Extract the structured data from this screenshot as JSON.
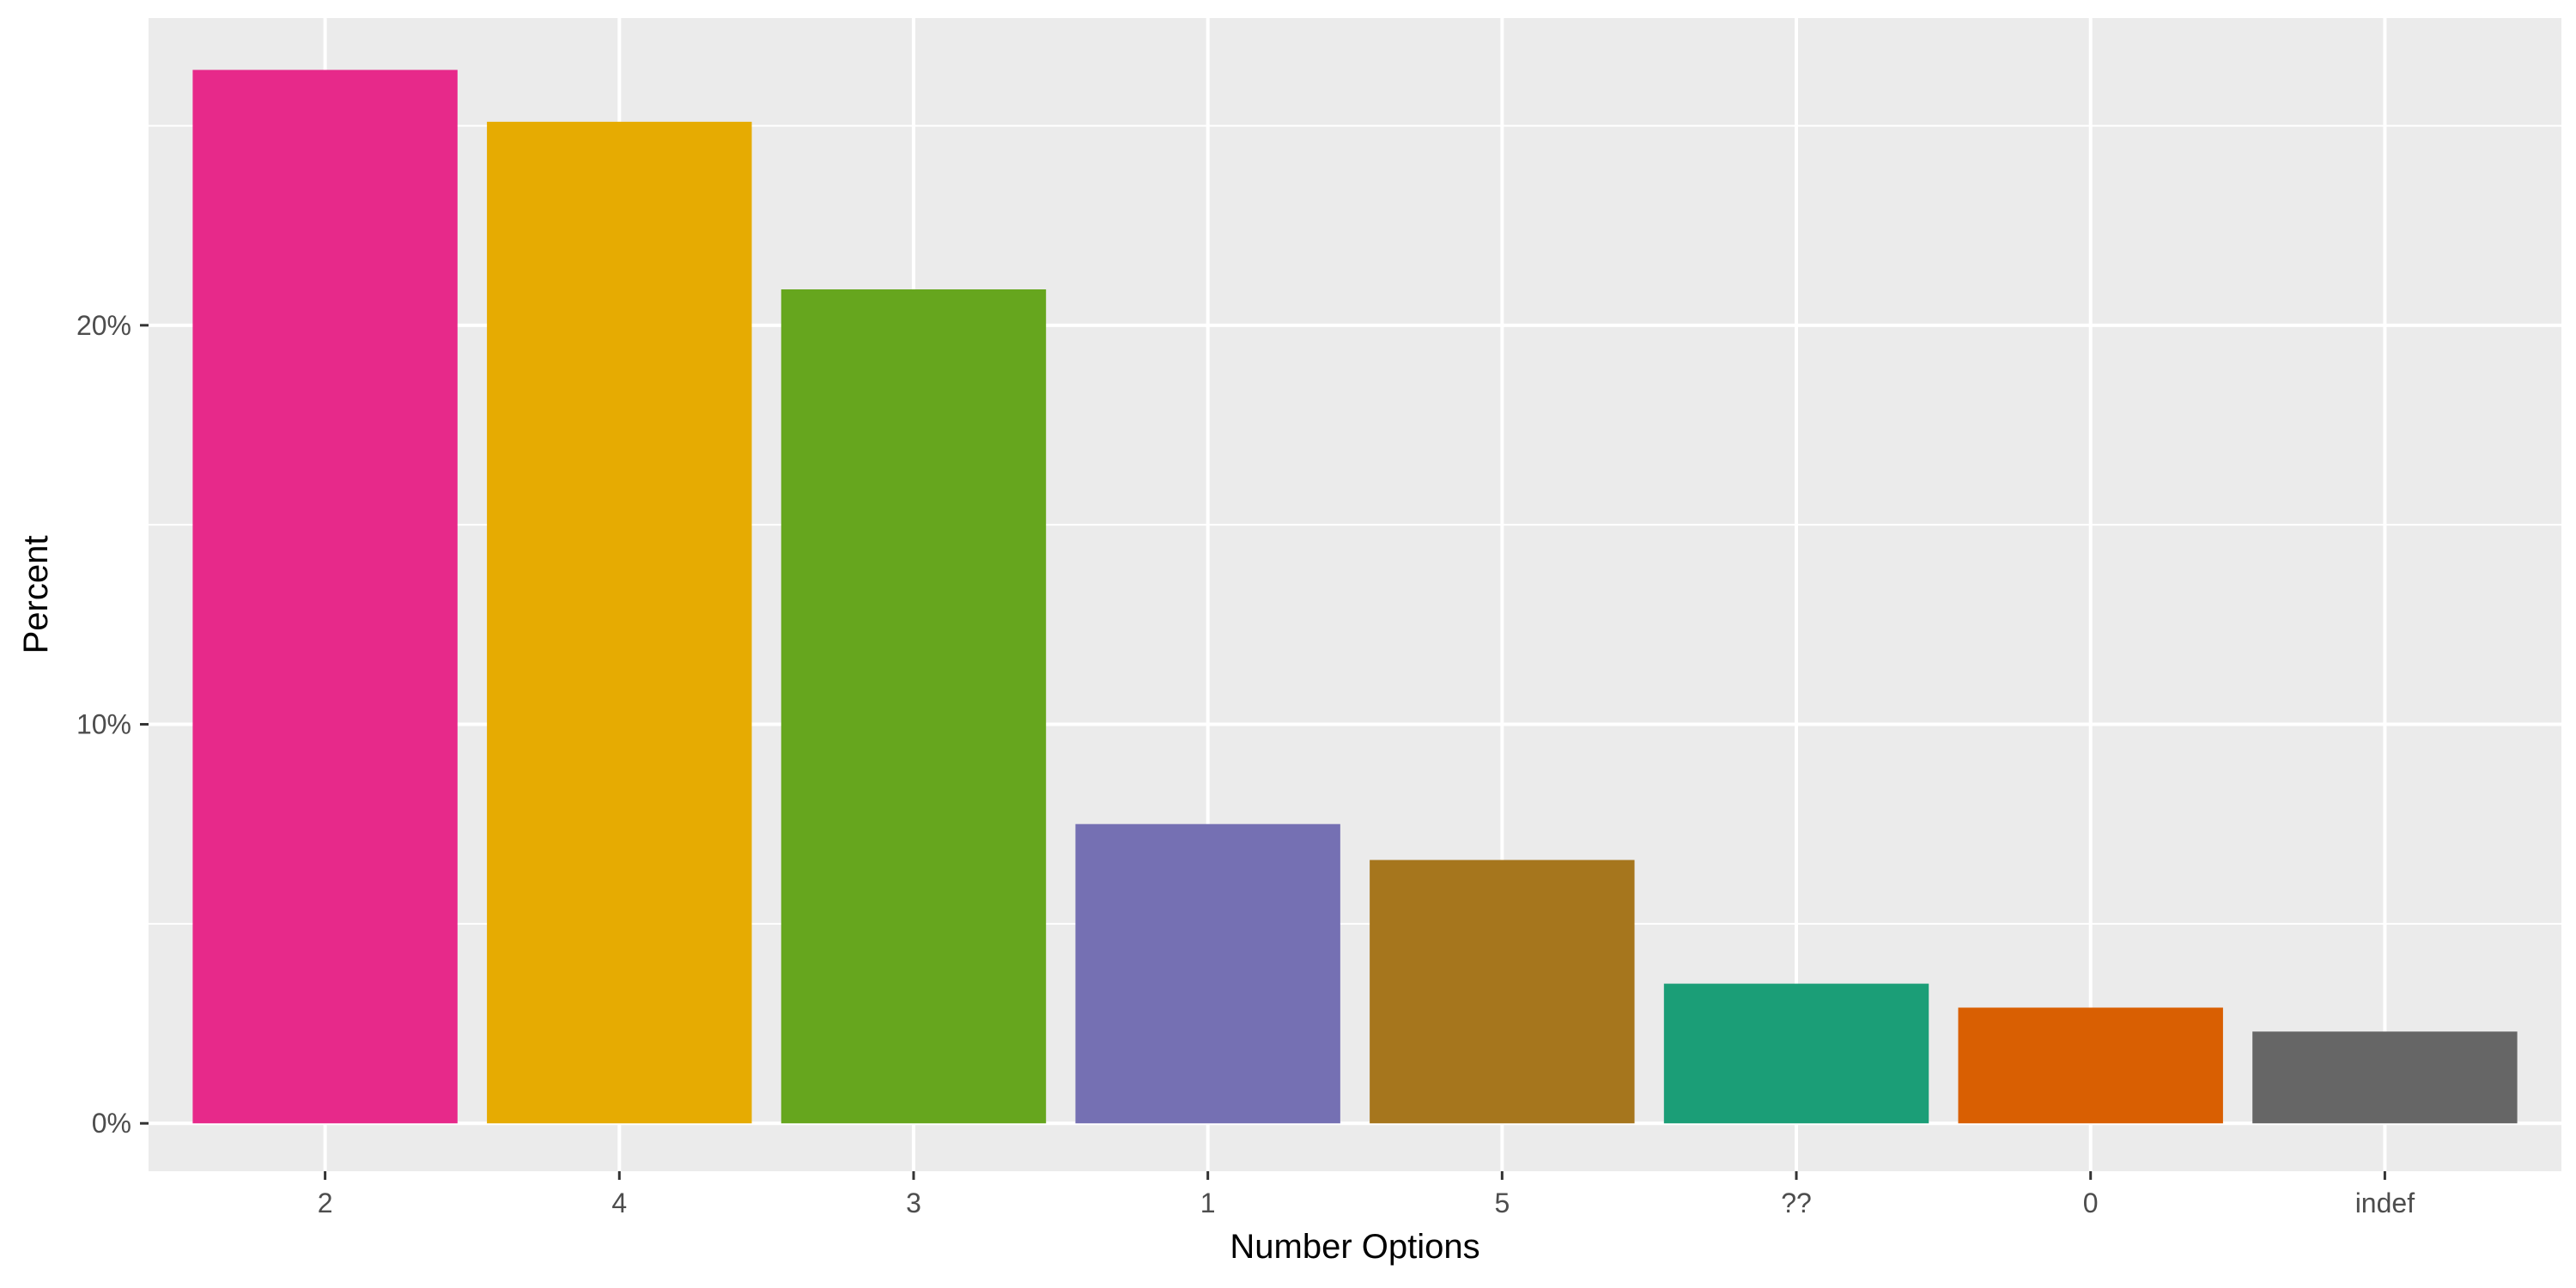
{
  "chart_data": {
    "type": "bar",
    "title": "",
    "xlabel": "Number Options",
    "ylabel": "Percent",
    "categories": [
      "2",
      "4",
      "3",
      "1",
      "5",
      "??",
      "0",
      "indef"
    ],
    "values": [
      26.4,
      25.1,
      20.9,
      7.5,
      6.6,
      3.5,
      2.9,
      2.3
    ],
    "colors": [
      "#E7298A",
      "#E6AB02",
      "#66A61E",
      "#7570B3",
      "#A6761D",
      "#1B9E77",
      "#D95F02",
      "#666666"
    ],
    "ylim": [
      -1.2,
      27.7
    ],
    "y_ticks": [
      0,
      10,
      20
    ],
    "y_tick_labels": [
      "0%",
      "10%",
      "20%"
    ],
    "y_minor_ticks": [
      5,
      15,
      25
    ],
    "grid": true,
    "panel_background": "#EBEBEB",
    "grid_color": "#FFFFFF",
    "legend": "none"
  }
}
